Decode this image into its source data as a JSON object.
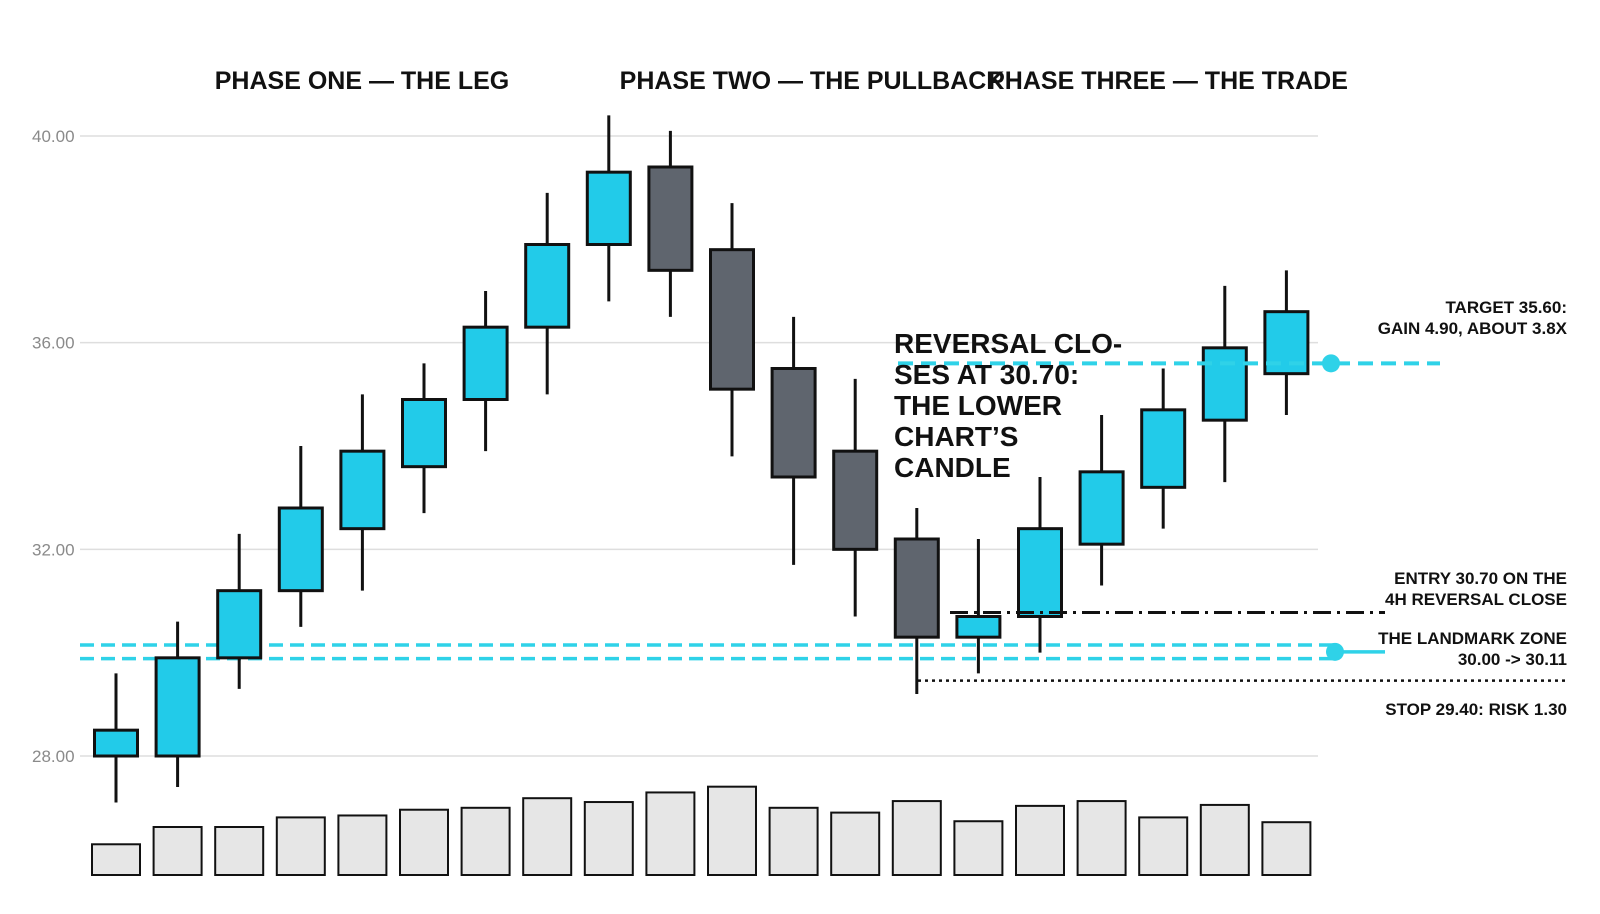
{
  "chart_data": {
    "type": "candlestick",
    "title": "",
    "xlabel": "",
    "ylabel": "",
    "ylim": [
      27.0,
      40.5
    ],
    "y_ticks": [
      "40.00",
      "36.00",
      "32.00",
      "28.00"
    ],
    "y_tick_values": [
      40,
      36,
      32,
      28
    ],
    "grid": true,
    "phases": [
      {
        "label": "PHASE ONE — THE LEG",
        "from": 0,
        "to": 8
      },
      {
        "label": "PHASE TWO — THE PULLBACK",
        "from": 9,
        "to": 13
      },
      {
        "label": "PHASE THREE — THE TRADE",
        "from": 14,
        "to": 19
      }
    ],
    "candles": [
      {
        "open": 28.0,
        "high": 29.6,
        "low": 27.1,
        "close": 28.5,
        "direction": "up"
      },
      {
        "open": 28.0,
        "high": 30.6,
        "low": 27.4,
        "close": 29.9,
        "direction": "up"
      },
      {
        "open": 29.9,
        "high": 32.3,
        "low": 29.3,
        "close": 31.2,
        "direction": "up"
      },
      {
        "open": 31.2,
        "high": 34.0,
        "low": 30.5,
        "close": 32.8,
        "direction": "up"
      },
      {
        "open": 32.4,
        "high": 35.0,
        "low": 31.2,
        "close": 33.9,
        "direction": "up"
      },
      {
        "open": 33.6,
        "high": 35.6,
        "low": 32.7,
        "close": 34.9,
        "direction": "up"
      },
      {
        "open": 34.9,
        "high": 37.0,
        "low": 33.9,
        "close": 36.3,
        "direction": "up"
      },
      {
        "open": 36.3,
        "high": 38.9,
        "low": 35.0,
        "close": 37.9,
        "direction": "up"
      },
      {
        "open": 37.9,
        "high": 40.4,
        "low": 36.8,
        "close": 39.3,
        "direction": "up"
      },
      {
        "open": 39.4,
        "high": 40.1,
        "low": 36.5,
        "close": 37.4,
        "direction": "down"
      },
      {
        "open": 37.8,
        "high": 38.7,
        "low": 33.8,
        "close": 35.1,
        "direction": "down"
      },
      {
        "open": 35.5,
        "high": 36.5,
        "low": 31.7,
        "close": 33.4,
        "direction": "down"
      },
      {
        "open": 33.9,
        "high": 35.3,
        "low": 30.7,
        "close": 32.0,
        "direction": "down"
      },
      {
        "open": 32.2,
        "high": 32.8,
        "low": 29.2,
        "close": 30.3,
        "direction": "down"
      },
      {
        "open": 30.3,
        "high": 32.2,
        "low": 29.6,
        "close": 30.7,
        "direction": "up"
      },
      {
        "open": 30.7,
        "high": 33.4,
        "low": 30.0,
        "close": 32.4,
        "direction": "up"
      },
      {
        "open": 32.1,
        "high": 34.6,
        "low": 31.3,
        "close": 33.5,
        "direction": "up"
      },
      {
        "open": 33.2,
        "high": 35.5,
        "low": 32.4,
        "close": 34.7,
        "direction": "up"
      },
      {
        "open": 34.5,
        "high": 37.1,
        "low": 33.3,
        "close": 35.9,
        "direction": "up"
      },
      {
        "open": 35.4,
        "high": 37.4,
        "low": 34.6,
        "close": 36.6,
        "direction": "up"
      }
    ],
    "volume": [
      0.32,
      0.5,
      0.5,
      0.6,
      0.62,
      0.68,
      0.7,
      0.8,
      0.76,
      0.86,
      0.92,
      0.7,
      0.65,
      0.77,
      0.56,
      0.72,
      0.77,
      0.6,
      0.73,
      0.55
    ],
    "levels": {
      "target": {
        "value": 35.6,
        "label_lines": [
          "TARGET 35.60:",
          "GAIN 4.90, ABOUT 3.8X"
        ]
      },
      "entry": {
        "value": 30.7,
        "label_lines": [
          "ENTRY 30.70 ON THE",
          "4H REVERSAL CLOSE"
        ]
      },
      "landmark_zone": {
        "low": 30.0,
        "high": 30.11,
        "label_lines": [
          "THE LANDMARK ZONE",
          "30.00 -> 30.11"
        ]
      },
      "stop": {
        "value": 29.4,
        "label_lines": [
          "STOP 29.40: RISK 1.30"
        ]
      }
    },
    "annotation": {
      "lines": [
        "REVERSAL CLO-",
        "SES AT 30.70:",
        "THE LOWER",
        "CHART’S",
        "CANDLE"
      ]
    },
    "colors": {
      "up": "#22cbe9",
      "down": "#5f656e",
      "level": "#2fd2e8",
      "volume": "#e6e6e6",
      "grid": "#dedede",
      "outline": "#111111"
    }
  }
}
